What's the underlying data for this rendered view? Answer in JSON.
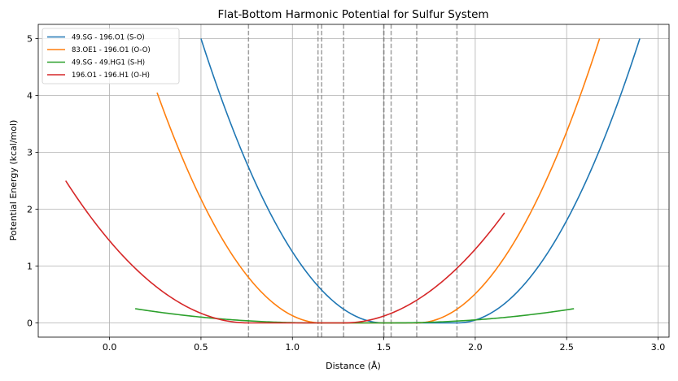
{
  "chart_data": {
    "type": "line",
    "title": "Flat-Bottom Harmonic Potential for Sulfur System",
    "xlabel": "Distance (Å)",
    "ylabel": "Potential Energy (kcal/mol)",
    "xlim": [
      -0.39,
      3.06
    ],
    "ylim": [
      -0.25,
      5.25
    ],
    "xticks": [
      0.0,
      0.5,
      1.0,
      1.5,
      2.0,
      2.5,
      3.0
    ],
    "xtick_labels": [
      "0.0",
      "0.5",
      "1.0",
      "1.5",
      "2.0",
      "2.5",
      "3.0"
    ],
    "yticks": [
      0,
      1,
      2,
      3,
      4,
      5
    ],
    "ytick_labels": [
      "0",
      "1",
      "2",
      "3",
      "4",
      "5"
    ],
    "grid": true,
    "legend_position": "top-left",
    "series": [
      {
        "name": "49.SG - 196.O1 (S-O)",
        "color": "#1f77b4",
        "x_range": [
          0.5,
          2.9
        ],
        "flat_bottom": [
          1.5,
          1.9
        ],
        "force_constant": 5.0
      },
      {
        "name": "83.OE1 - 196.O1 (O-O)",
        "color": "#ff7f0e",
        "x_range": [
          0.26,
          2.68
        ],
        "flat_bottom": [
          1.16,
          1.68
        ],
        "force_constant": 5.0
      },
      {
        "name": "49.SG - 49.HG1 (S-H)",
        "color": "#2ca02c",
        "x_range": [
          0.14,
          2.54
        ],
        "flat_bottom": [
          1.14,
          1.54
        ],
        "force_constant": 0.25
      },
      {
        "name": "196.O1 - 196.H1 (O-H)",
        "color": "#d62728",
        "x_range": [
          -0.24,
          2.16
        ],
        "flat_bottom": [
          0.76,
          1.28
        ],
        "force_constant": 2.5
      }
    ],
    "vlines": [
      0.76,
      1.14,
      1.16,
      1.28,
      1.5,
      1.5,
      1.54,
      1.68,
      1.9
    ]
  }
}
